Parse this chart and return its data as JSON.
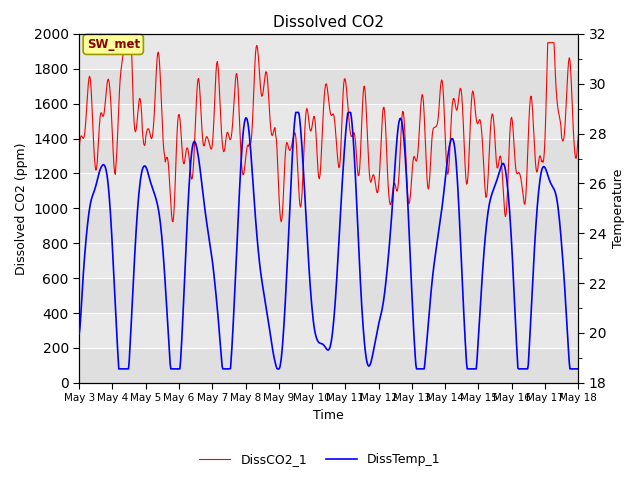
{
  "title": "Dissolved CO2",
  "xlabel": "Time",
  "ylabel_left": "Dissolved CO2 (ppm)",
  "ylabel_right": "Temperature",
  "legend_labels": [
    "DissCO2_1",
    "DissTemp_1"
  ],
  "ylim_left": [
    0,
    2000
  ],
  "ylim_right": [
    18,
    32
  ],
  "yticks_left": [
    0,
    200,
    400,
    600,
    800,
    1000,
    1200,
    1400,
    1600,
    1800,
    2000
  ],
  "yticks_right": [
    18,
    20,
    22,
    24,
    26,
    28,
    30,
    32
  ],
  "bg_color": "#e8e8e8",
  "fig_color": "#ffffff",
  "grid_color": "#ffffff",
  "annotation_text": "SW_met",
  "annotation_bg": "#ffff99",
  "annotation_border": "#999900"
}
